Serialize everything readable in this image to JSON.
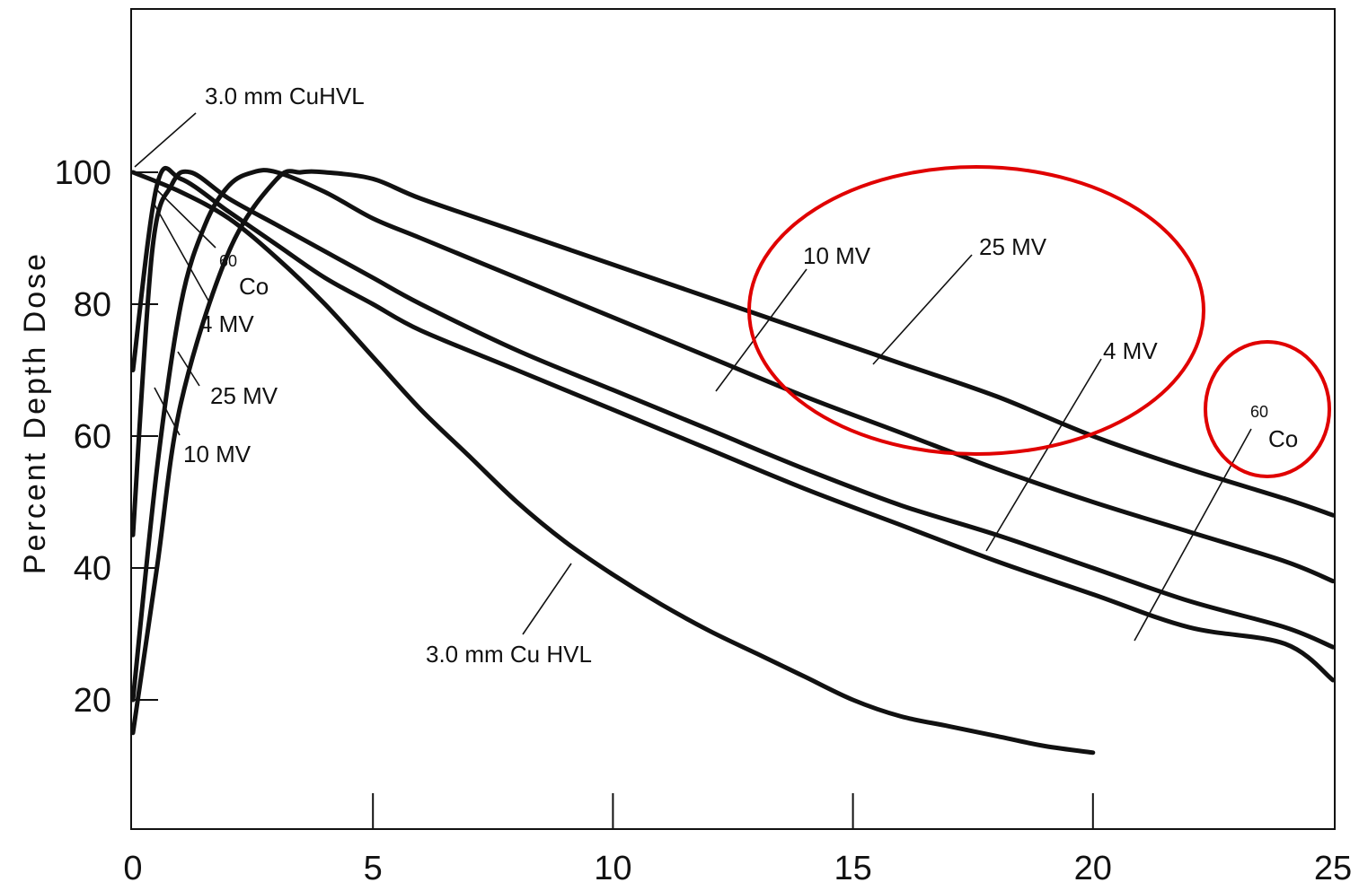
{
  "chart_data": {
    "type": "line",
    "title": "",
    "xlabel": "",
    "ylabel": "Percent Depth Dose",
    "xlim": [
      0,
      25
    ],
    "ylim": [
      0,
      125
    ],
    "x_ticks": [
      {
        "value": 0,
        "label": "0"
      },
      {
        "value": 5,
        "label": "5"
      },
      {
        "value": 10,
        "label": "10"
      },
      {
        "value": 15,
        "label": "15"
      },
      {
        "value": 20,
        "label": "20"
      },
      {
        "value": 25,
        "label": "25"
      }
    ],
    "y_ticks": [
      {
        "value": 20,
        "label": "20"
      },
      {
        "value": 40,
        "label": "40"
      },
      {
        "value": 60,
        "label": "60"
      },
      {
        "value": 80,
        "label": "80"
      },
      {
        "value": 100,
        "label": "100"
      }
    ],
    "grid": false,
    "legend": "none",
    "series": [
      {
        "name": "3.0 mm Cu HVL",
        "x": [
          0,
          1,
          2,
          3,
          4,
          5,
          6,
          7,
          8,
          9,
          10,
          11,
          12,
          13,
          14,
          15,
          16,
          17,
          18,
          19,
          20
        ],
        "y": [
          100,
          97,
          93,
          87,
          80,
          72,
          64,
          57,
          50,
          44,
          39,
          34.5,
          30.5,
          27,
          23.5,
          20,
          17.5,
          16,
          14.5,
          13,
          12
        ]
      },
      {
        "name": "60Co",
        "x": [
          0,
          0.5,
          1,
          2,
          3,
          4,
          5,
          6,
          8,
          10,
          12,
          14,
          16,
          18,
          20,
          22,
          24,
          25
        ],
        "y": [
          70,
          98,
          99,
          94,
          89,
          84,
          80,
          76,
          70,
          64,
          58,
          52,
          46.5,
          41,
          36,
          31,
          28.5,
          23
        ]
      },
      {
        "name": "4 MV",
        "x": [
          0,
          0.4,
          0.8,
          1.2,
          2,
          3,
          4,
          5,
          6,
          8,
          10,
          12,
          14,
          16,
          18,
          20,
          22,
          24,
          25
        ],
        "y": [
          45,
          88,
          98,
          100,
          96,
          92,
          88,
          84,
          80,
          73,
          67,
          61,
          55,
          49.5,
          45,
          40,
          35,
          31,
          28
        ]
      },
      {
        "name": "10 MV",
        "x": [
          0,
          0.5,
          1,
          1.5,
          2,
          2.5,
          3,
          4,
          5,
          6,
          8,
          10,
          12,
          14,
          16,
          18,
          20,
          22,
          24,
          25
        ],
        "y": [
          20,
          55,
          80,
          92,
          98,
          100,
          100,
          97,
          93,
          90,
          84,
          78,
          72,
          66,
          60.5,
          55,
          50,
          45.5,
          41,
          38
        ]
      },
      {
        "name": "25 MV",
        "x": [
          0,
          0.5,
          1,
          2,
          3,
          3.5,
          4,
          5,
          6,
          8,
          10,
          12,
          14,
          16,
          18,
          20,
          22,
          24,
          25
        ],
        "y": [
          15,
          40,
          65,
          88,
          99,
          100,
          100,
          99,
          96,
          91,
          86,
          81,
          76,
          71,
          66,
          60,
          55,
          50.5,
          48
        ]
      }
    ],
    "annotations": [
      {
        "text": "3.0 mm CuHVL",
        "target": "3.0 mm Cu HVL"
      },
      {
        "text": "3.0 mm Cu HVL",
        "target": "3.0 mm Cu HVL"
      },
      {
        "text": "4 MV",
        "target": "4 MV"
      },
      {
        "text": "25 MV",
        "target": "25 MV"
      },
      {
        "text": "10 MV",
        "target": "10 MV"
      },
      {
        "text": "10 MV",
        "target": "10 MV"
      },
      {
        "text": "25 MV",
        "target": "25 MV"
      },
      {
        "text": "4 MV",
        "target": "4 MV"
      }
    ],
    "co_labels": [
      {
        "sup": "60",
        "text": "Co"
      },
      {
        "sup": "60",
        "text": "Co"
      }
    ],
    "highlight_color": "#e00000",
    "line_color": "#111111"
  }
}
